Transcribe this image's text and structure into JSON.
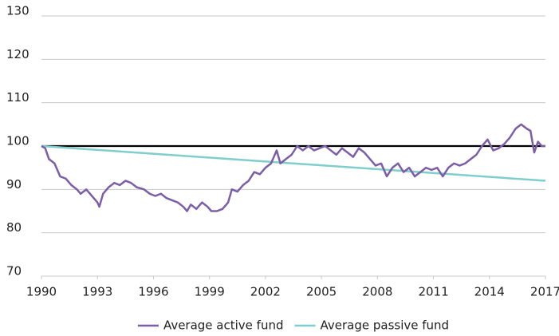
{
  "chart_data": {
    "type": "line",
    "xlim": [
      1990,
      2017
    ],
    "xticks": [
      1990,
      1993,
      1996,
      1999,
      2002,
      2005,
      2008,
      2011,
      2014,
      2017
    ],
    "ylim": [
      70,
      130
    ],
    "yticks": [
      70,
      80,
      90,
      100,
      110,
      120,
      130
    ],
    "grid": true,
    "legend": "bottom",
    "reference_line": {
      "value": 100,
      "color": "#000000"
    },
    "series": [
      {
        "name": "Average active fund",
        "color": "#7b5ea7",
        "x": [
          1990.0,
          1990.2,
          1990.4,
          1990.7,
          1991.0,
          1991.3,
          1991.6,
          1991.9,
          1992.1,
          1992.4,
          1992.7,
          1993.0,
          1993.1,
          1993.3,
          1993.6,
          1993.9,
          1994.2,
          1994.5,
          1994.8,
          1995.1,
          1995.5,
          1995.8,
          1996.1,
          1996.4,
          1996.7,
          1997.0,
          1997.3,
          1997.6,
          1997.8,
          1998.0,
          1998.3,
          1998.6,
          1998.9,
          1999.1,
          1999.4,
          1999.7,
          2000.0,
          2000.2,
          2000.5,
          2000.8,
          2001.1,
          2001.4,
          2001.7,
          2002.0,
          2002.3,
          2002.6,
          2002.8,
          2003.1,
          2003.4,
          2003.7,
          2004.0,
          2004.3,
          2004.6,
          2004.9,
          2005.2,
          2005.5,
          2005.8,
          2006.1,
          2006.4,
          2006.7,
          2007.0,
          2007.3,
          2007.6,
          2007.9,
          2008.2,
          2008.5,
          2008.8,
          2009.1,
          2009.4,
          2009.7,
          2010.0,
          2010.3,
          2010.6,
          2010.9,
          2011.2,
          2011.5,
          2011.8,
          2012.1,
          2012.4,
          2012.7,
          2013.0,
          2013.3,
          2013.6,
          2013.9,
          2014.2,
          2014.5,
          2014.8,
          2015.1,
          2015.4,
          2015.7,
          2016.0,
          2016.2,
          2016.4,
          2016.6,
          2016.8,
          2017.0
        ],
        "values": [
          100,
          99.5,
          97,
          96,
          93,
          92.5,
          91,
          90,
          89,
          90,
          88.5,
          87,
          86,
          89,
          90.5,
          91.5,
          91,
          92,
          91.5,
          90.5,
          90,
          89,
          88.5,
          89,
          88,
          87.5,
          87,
          86,
          85,
          86.5,
          85.5,
          87,
          86,
          85,
          85,
          85.5,
          87,
          90,
          89.5,
          91,
          92,
          94,
          93.5,
          95,
          96,
          99,
          96,
          97,
          98,
          100,
          99,
          100,
          99,
          99.5,
          100,
          99,
          98,
          99.5,
          98.5,
          97.5,
          99.5,
          98.5,
          97,
          95.5,
          96,
          93,
          95,
          96,
          94,
          95,
          93,
          94,
          95,
          94.5,
          95,
          93,
          95,
          96,
          95.5,
          96,
          97,
          98,
          100,
          101.5,
          99,
          99.5,
          100.5,
          102,
          104,
          105,
          104,
          103.5,
          98.5,
          101,
          100,
          100
        ]
      },
      {
        "name": "Average passive fund",
        "color": "#7fcdcd",
        "x": [
          1990,
          2017
        ],
        "values": [
          100,
          92
        ]
      }
    ]
  }
}
